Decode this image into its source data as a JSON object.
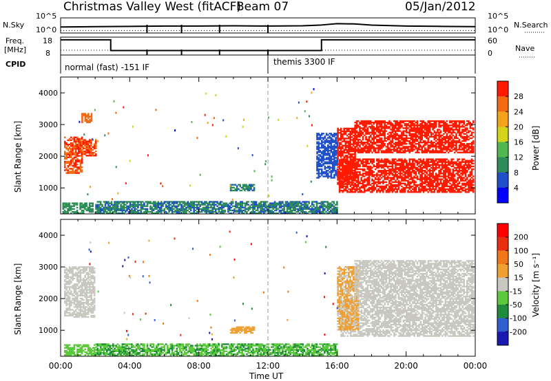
{
  "header": {
    "site": "Christmas Valley West (fitACF)",
    "beam": "Beam 07",
    "date": "05/Jan/2012"
  },
  "strips": {
    "nsky_label": "N.Sky",
    "nsky_ticks": [
      "10^5",
      "10^0"
    ],
    "nsearch_label": "N.Search",
    "nsearch_ticks": [
      "10^5",
      "10^0"
    ],
    "freq_label": "Freq.",
    "freq_unit": "[MHz]",
    "freq_ticks": [
      "18",
      "8"
    ],
    "nave_label": "Nave",
    "nave_ticks": [
      "60",
      "0"
    ],
    "cpid_label": "CPID",
    "cpid_segments": [
      "normal (fast) -151 IF",
      "themis 3300 IF"
    ]
  },
  "power_panel": {
    "ylabel": "Slant Range [km]",
    "colorbar_label": "Power [dB]",
    "colorbar_ticks": [
      "28",
      "24",
      "20",
      "16",
      "12",
      "8",
      "4"
    ]
  },
  "velocity_panel": {
    "ylabel": "Slant Range [km]",
    "colorbar_label": "Velocity [m s⁻¹]",
    "colorbar_ticks": [
      "200",
      "100",
      "50",
      "15",
      "-15",
      "-50",
      "-100",
      "-200"
    ]
  },
  "xaxis": {
    "label": "Time UT",
    "ticks": [
      "00:00",
      "04:00",
      "08:00",
      "12:00",
      "16:00",
      "20:00",
      "00:00"
    ]
  },
  "colors": {
    "power_scale": [
      "#0000ff",
      "#2050c8",
      "#2d8c5a",
      "#4fb84f",
      "#d4d41a",
      "#f5a21c",
      "#f26a12",
      "#ff1a00"
    ],
    "velocity_scale": [
      "#1a1ab0",
      "#2f5fd0",
      "#1e8c3c",
      "#5cc83c",
      "#c8c8c0",
      "#f0a030",
      "#f07818",
      "#e83010",
      "#ff0000"
    ]
  },
  "chart_data": [
    {
      "type": "line",
      "title": "N.Sky / N.Search",
      "x": [
        0,
        2,
        4,
        6,
        8,
        10,
        12,
        14,
        15,
        16,
        17,
        18,
        20,
        22,
        24
      ],
      "series": [
        {
          "name": "N.Sky",
          "values": [
            2.0,
            2.1,
            2.2,
            2.3,
            2.3,
            2.4,
            2.3,
            2.4,
            2.6,
            3.1,
            3.0,
            2.6,
            2.3,
            2.2,
            2.1
          ]
        },
        {
          "name": "N.Search",
          "values": [
            0.8,
            0.8,
            0.8,
            0.8,
            0.8,
            0.8,
            0.8,
            0.8,
            0.8,
            0.8,
            0.8,
            0.8,
            0.8,
            0.8,
            0.8
          ]
        }
      ],
      "ylim": [
        0,
        5
      ]
    },
    {
      "type": "line",
      "title": "Freq. / Nave",
      "x": [
        0,
        2.9,
        2.9,
        15.1,
        15.1,
        24
      ],
      "series": [
        {
          "name": "Freq.",
          "values": [
            16.5,
            16.5,
            10.5,
            10.5,
            16.5,
            16.5
          ]
        },
        {
          "name": "Nave",
          "values": [
            30,
            30,
            30,
            30,
            30,
            30
          ]
        }
      ],
      "ylim": [
        8,
        18
      ]
    },
    {
      "type": "heatmap",
      "title": "Power [dB]",
      "xlabel": "Time UT",
      "ylabel": "Slant Range [km]",
      "xlim": [
        0,
        24
      ],
      "ylim": [
        180,
        4500
      ],
      "colorbar_range": [
        0,
        30
      ],
      "regions": [
        {
          "t0": 0.2,
          "t1": 1.2,
          "r0": 1450,
          "r1": 2600,
          "value": 26
        },
        {
          "t0": 1.0,
          "t1": 2.0,
          "r0": 2000,
          "r1": 2500,
          "value": 26
        },
        {
          "t0": 1.2,
          "t1": 1.8,
          "r0": 3050,
          "r1": 3350,
          "value": 24
        },
        {
          "t0": 0.1,
          "t1": 1.9,
          "r0": 180,
          "r1": 520,
          "value": 10
        },
        {
          "t0": 2.0,
          "t1": 16.0,
          "r0": 180,
          "r1": 550,
          "value": 8
        },
        {
          "t0": 9.8,
          "t1": 11.2,
          "r0": 900,
          "r1": 1100,
          "value": 8
        },
        {
          "t0": 14.8,
          "t1": 16.0,
          "r0": 1300,
          "r1": 2700,
          "value": 6
        },
        {
          "t0": 16.1,
          "t1": 23.9,
          "r0": 850,
          "r1": 1900,
          "value": 29
        },
        {
          "t0": 16.0,
          "t1": 17.0,
          "r0": 1100,
          "r1": 2900,
          "value": 28
        },
        {
          "t0": 17.0,
          "t1": 23.9,
          "r0": 2100,
          "r1": 3100,
          "value": 28
        }
      ]
    },
    {
      "type": "heatmap",
      "title": "Velocity [m s⁻¹]",
      "xlabel": "Time UT",
      "ylabel": "Slant Range [km]",
      "xlim": [
        0,
        24
      ],
      "ylim": [
        180,
        4500
      ],
      "colorbar_range": [
        -200,
        200
      ],
      "regions": [
        {
          "t0": 0.2,
          "t1": 2.0,
          "r0": 1400,
          "r1": 3000,
          "value": 0
        },
        {
          "t0": 0.2,
          "t1": 2.0,
          "r0": 200,
          "r1": 520,
          "value": -40
        },
        {
          "t0": 2.0,
          "t1": 16.0,
          "r0": 180,
          "r1": 550,
          "value": -60
        },
        {
          "t0": 9.8,
          "t1": 11.2,
          "r0": 900,
          "r1": 1100,
          "value": 40
        },
        {
          "t0": 16.2,
          "t1": 23.9,
          "r0": 800,
          "r1": 2000,
          "value": 0
        },
        {
          "t0": 16.0,
          "t1": 17.2,
          "r0": 1000,
          "r1": 3000,
          "value": 30
        },
        {
          "t0": 17.0,
          "t1": 23.9,
          "r0": 2000,
          "r1": 3200,
          "value": 0
        }
      ]
    }
  ]
}
